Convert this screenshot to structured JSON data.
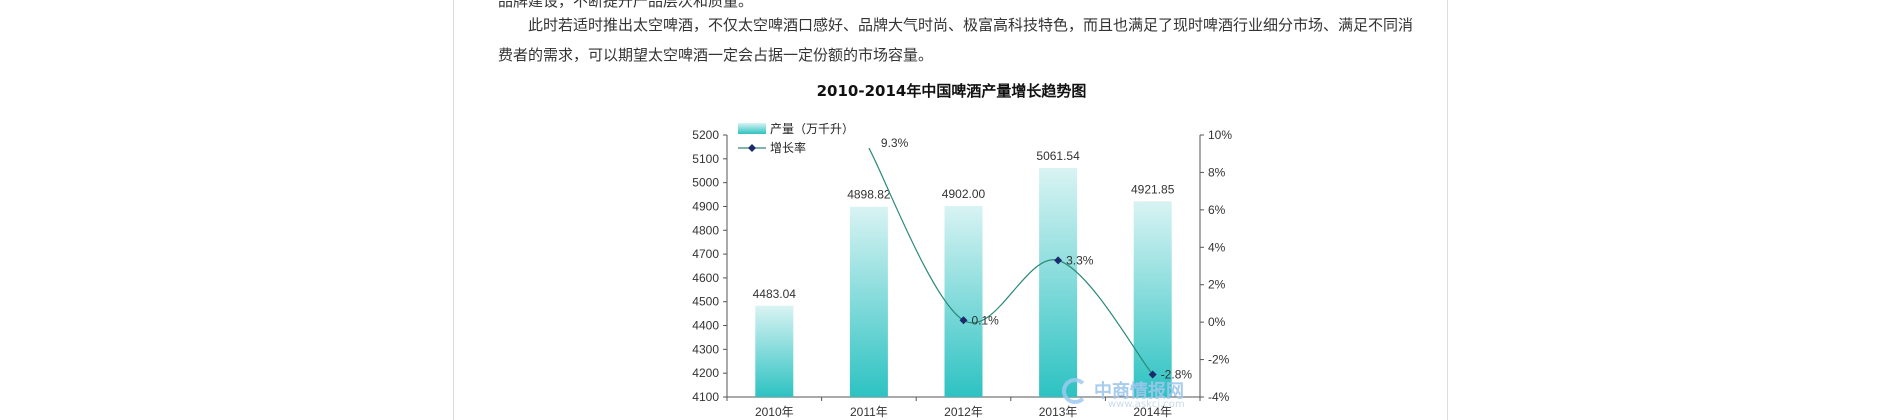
{
  "article": {
    "paragraph_top": "品牌建设，不断提升产品层次和质量。",
    "paragraph_main": "此时若适时推出太空啤酒，不仅太空啤酒口感好、品牌大气时尚、极富高科技特色，而且也满足了现时啤酒行业细分市场、满足不同消费者的需求，可以期望太空啤酒一定会占据一定份额的市场容量。"
  },
  "chart_data": {
    "type": "bar",
    "title": "2010-2014年中国啤酒产量增长趋势图",
    "categories": [
      "2010年",
      "2011年",
      "2012年",
      "2013年",
      "2014年"
    ],
    "series": [
      {
        "name": "产量（万千升）",
        "type": "bar",
        "axis": "left",
        "values": [
          4483.04,
          4898.82,
          4902.0,
          5061.54,
          4921.85
        ],
        "labels": [
          "4483.04",
          "4898.82",
          "4902.00",
          "5061.54",
          "4921.85"
        ]
      },
      {
        "name": "增长率",
        "type": "line",
        "axis": "right",
        "values": [
          null,
          9.3,
          0.1,
          3.3,
          -2.8
        ],
        "labels": [
          "",
          "9.3%",
          "0.1%",
          "3.3%",
          "-2.8%"
        ]
      }
    ],
    "y_left": {
      "ylim": [
        4100,
        5200
      ],
      "ticks": [
        "4100",
        "4200",
        "4300",
        "4400",
        "4500",
        "4600",
        "4700",
        "4800",
        "4900",
        "5000",
        "5100",
        "5200"
      ]
    },
    "y_right": {
      "ylim": [
        -4,
        10
      ],
      "ticks": [
        "-4%",
        "-2%",
        "0%",
        "2%",
        "4%",
        "6%",
        "8%",
        "10%"
      ]
    },
    "legend_position": "top-left",
    "colors": {
      "bar_top": "#d5f1f1",
      "bar_bottom": "#2ec3c3",
      "line": "#2a8a78",
      "marker": "#1c2a6e"
    }
  },
  "watermark": {
    "text": "中商情报网",
    "url": "www.askci.com"
  }
}
